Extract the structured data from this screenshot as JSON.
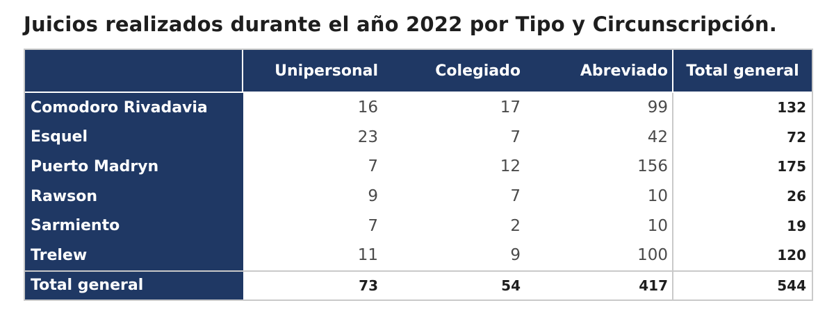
{
  "title": "Juicios realizados durante el año 2022 por Tipo y Circunscripción.",
  "headers": [
    "",
    "Unipersonal",
    "Colegiado",
    "Abreviado",
    "Total general"
  ],
  "rows": [
    {
      "name": "Comodoro Rivadavia",
      "unipersonal": "16",
      "colegiado": "17",
      "abreviado": "99",
      "total": "132"
    },
    {
      "name": "Esquel",
      "unipersonal": "23",
      "colegiado": "7",
      "abreviado": "42",
      "total": "72"
    },
    {
      "name": "Puerto Madryn",
      "unipersonal": "7",
      "colegiado": "12",
      "abreviado": "156",
      "total": "175"
    },
    {
      "name": "Rawson",
      "unipersonal": "9",
      "colegiado": "7",
      "abreviado": "10",
      "total": "26"
    },
    {
      "name": "Sarmiento",
      "unipersonal": "7",
      "colegiado": "2",
      "abreviado": "10",
      "total": "19"
    },
    {
      "name": "Trelew",
      "unipersonal": "11",
      "colegiado": "9",
      "abreviado": "100",
      "total": "120"
    }
  ],
  "total_row": {
    "name": "Total general",
    "unipersonal": "73",
    "colegiado": "54",
    "abreviado": "417",
    "total": "544"
  },
  "colors": {
    "header_bg": "#1f3864",
    "header_text": "#ffffff"
  }
}
